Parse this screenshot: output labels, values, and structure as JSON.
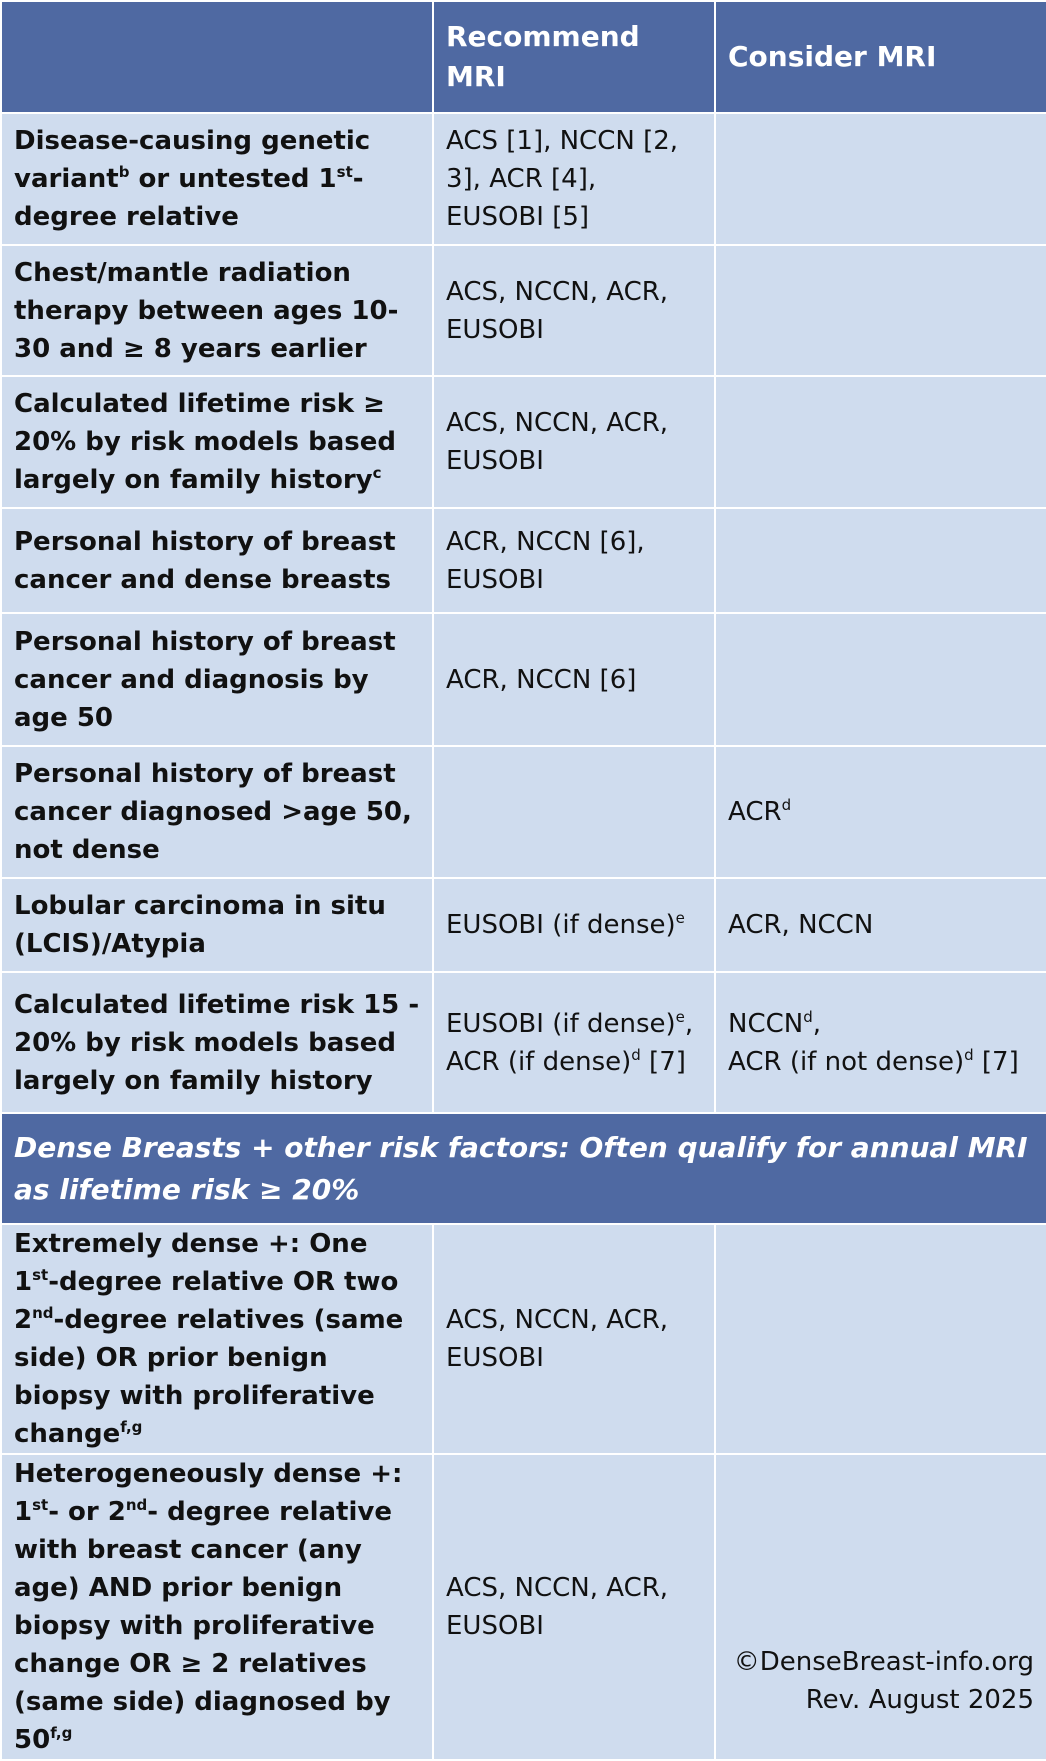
{
  "header": {
    "columns": [
      "Recommend MRI",
      "Consider MRI"
    ]
  },
  "rows": [
    {
      "criterion": [
        "Disease-causing genetic variant",
        {
          "sup": "b"
        },
        " or untested 1",
        {
          "sup": "st"
        },
        "-degree relative"
      ],
      "recommend": [
        "ACS [1], NCCN [2, 3], ACR [4], EUSOBI [5]"
      ]
    },
    {
      "criterion": [
        "Chest/mantle radiation therapy between ages 10-30 and ≥ 8 years earlier"
      ],
      "recommend": [
        "ACS, NCCN, ACR, EUSOBI"
      ]
    },
    {
      "criterion": [
        "Calculated lifetime risk ≥ 20% by risk models based largely on family history",
        {
          "sup": "c"
        }
      ],
      "recommend": [
        "ACS, NCCN, ACR, EUSOBI"
      ]
    },
    {
      "criterion": [
        "Personal history of breast cancer and dense breasts"
      ],
      "recommend": [
        "ACR, NCCN [6], EUSOBI"
      ]
    },
    {
      "criterion": [
        "Personal history of breast cancer and diagnosis by age 50"
      ],
      "recommend": [
        "ACR, NCCN [6]"
      ]
    },
    {
      "criterion": [
        "Personal history of breast cancer diagnosed >age 50, not dense"
      ],
      "consider": [
        "ACR",
        {
          "sup": "d"
        }
      ]
    },
    {
      "criterion": [
        "Lobular carcinoma in situ (LCIS)/Atypia"
      ],
      "recommend": [
        "EUSOBI (if dense)",
        {
          "sup": "e"
        }
      ],
      "consider": [
        "ACR, NCCN"
      ]
    },
    {
      "criterion": [
        "Calculated lifetime risk 15 - 20% by risk models based largely on family history"
      ],
      "recommend": [
        "EUSOBI (if dense)",
        {
          "sup": "e"
        },
        ",\nACR (if dense)",
        {
          "sup": "d"
        },
        " [7]"
      ],
      "consider": [
        "NCCN",
        {
          "sup": "d"
        },
        ",\nACR (if not dense)",
        {
          "sup": "d"
        },
        " [7]"
      ]
    },
    {
      "section": "Dense Breasts + other risk factors: Often qualify for annual MRI as lifetime risk ≥ 20%"
    },
    {
      "criterion": [
        "Extremely dense +: One 1",
        {
          "sup": "st"
        },
        "-degree relative OR two 2",
        {
          "sup": "nd"
        },
        "-degree relatives (same side) OR prior benign biopsy with proliferative change",
        {
          "sup": "f,g"
        }
      ],
      "recommend": [
        "ACS, NCCN, ACR, EUSOBI"
      ]
    },
    {
      "criterion": [
        "Heterogeneously dense +: 1",
        {
          "sup": "st"
        },
        "- or 2",
        {
          "sup": "nd"
        },
        "- degree relative with breast cancer (any age) AND prior benign biopsy with proliferative change OR ≥ 2 relatives (same side) diagnosed by 50",
        {
          "sup": "f,g"
        }
      ],
      "recommend": [
        "ACS, NCCN, ACR, EUSOBI"
      ]
    }
  ],
  "footer": [
    "©DenseBreast-info.org",
    "Rev. August 2025"
  ]
}
